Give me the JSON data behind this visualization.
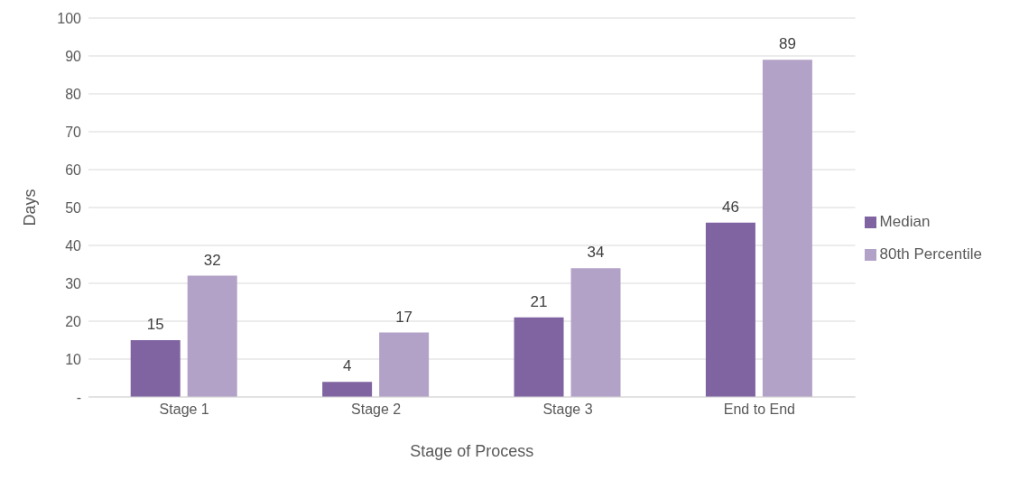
{
  "chart_data": {
    "type": "bar",
    "xlabel": "Stage of Process",
    "ylabel": "Days",
    "categories": [
      "Stage 1",
      "Stage 2",
      "Stage 3",
      "End to End"
    ],
    "series": [
      {
        "name": "Median",
        "color": "#8064a2",
        "values": [
          15,
          4,
          21,
          46
        ]
      },
      {
        "name": "80th Percentile",
        "color": "#b3a2c7",
        "values": [
          32,
          17,
          34,
          89
        ]
      }
    ],
    "ylim": [
      0,
      100
    ],
    "yticks": [
      {
        "value": 0,
        "label": "-"
      },
      10,
      20,
      30,
      40,
      50,
      60,
      70,
      80,
      90,
      100
    ],
    "grid": "y",
    "legend": "right",
    "data_labels": true
  }
}
